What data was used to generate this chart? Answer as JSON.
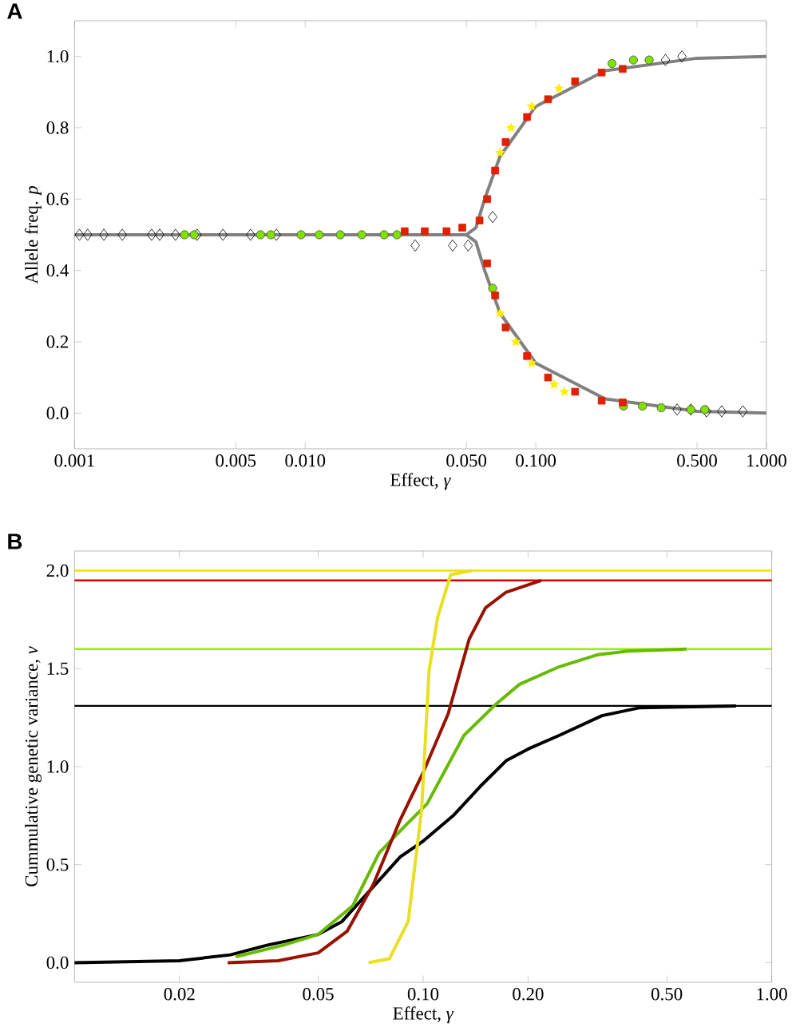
{
  "chart_data": [
    {
      "type": "scatter",
      "title": "A",
      "xlabel": "Effect, *γ*",
      "ylabel": "Allele freq. *p*",
      "log": "x",
      "xlim": [
        0.001,
        1.0
      ],
      "ylim": [
        -0.1,
        1.1
      ],
      "xticks": [
        0.001,
        0.005,
        {
          "value": 0.01,
          "label": "0.010"
        },
        {
          "value": 0.05,
          "label": "0.050"
        },
        {
          "value": 0.1,
          "label": "0.100"
        },
        {
          "value": 0.5,
          "label": "0.500"
        },
        {
          "value": 1.0,
          "label": "1.000"
        }
      ],
      "yticks": [
        {
          "value": 0.0,
          "label": "0.0"
        },
        0.2,
        0.4,
        0.6,
        0.8,
        {
          "value": 1.0,
          "label": "1.0"
        }
      ],
      "series": [
        {
          "type": "line",
          "marker": "none",
          "color": "#808080",
          "x": [
            0.001,
            0.01,
            0.03,
            0.05,
            0.055,
            0.06,
            0.07,
            0.1,
            0.2,
            0.5,
            1.0
          ],
          "values": [
            0.5,
            0.5,
            0.5,
            0.5,
            0.52,
            0.6,
            0.72,
            0.86,
            0.96,
            0.995,
            1.0
          ]
        },
        {
          "type": "line",
          "marker": "none",
          "color": "#808080",
          "x": [
            0.001,
            0.01,
            0.03,
            0.05,
            0.055,
            0.06,
            0.07,
            0.1,
            0.2,
            0.5,
            1.0
          ],
          "values": [
            0.5,
            0.5,
            0.5,
            0.5,
            0.48,
            0.4,
            0.28,
            0.14,
            0.04,
            0.005,
            0.0
          ]
        },
        {
          "marker": "diamond",
          "color": "#000000",
          "x": [
            0.00105,
            0.00114,
            0.00134,
            0.00161,
            0.00216,
            0.00234,
            0.00274,
            0.0034,
            0.0044,
            0.0058,
            0.0075,
            0.03,
            0.0436,
            0.0509,
            0.065,
            0.365,
            0.43,
            0.41,
            0.47,
            0.55,
            0.64,
            0.79
          ],
          "values": [
            0.5,
            0.5,
            0.5,
            0.5,
            0.5,
            0.5,
            0.5,
            0.5,
            0.5,
            0.5,
            0.5,
            0.47,
            0.47,
            0.47,
            0.55,
            0.99,
            1.0,
            0.01,
            0.01,
            0.005,
            0.005,
            0.005
          ]
        },
        {
          "marker": "circle",
          "color": "#80e000",
          "x": [
            0.003,
            0.0033,
            0.0064,
            0.0071,
            0.0096,
            0.0115,
            0.0142,
            0.0176,
            0.022,
            0.025,
            0.065,
            0.214,
            0.265,
            0.31,
            0.24,
            0.29,
            0.35,
            0.47,
            0.54
          ],
          "values": [
            0.5,
            0.5,
            0.5,
            0.5,
            0.5,
            0.5,
            0.5,
            0.5,
            0.5,
            0.5,
            0.35,
            0.98,
            0.99,
            0.99,
            0.02,
            0.02,
            0.015,
            0.01,
            0.01
          ]
        },
        {
          "marker": "square",
          "color": "#e02000",
          "x": [
            0.027,
            0.033,
            0.041,
            0.048,
            0.057,
            0.0615,
            0.0666,
            0.074,
            0.0916,
            0.113,
            0.148,
            0.193,
            0.238,
            0.0615,
            0.0666,
            0.074,
            0.0916,
            0.113,
            0.148,
            0.193,
            0.238
          ],
          "values": [
            0.51,
            0.51,
            0.51,
            0.52,
            0.54,
            0.6,
            0.68,
            0.76,
            0.83,
            0.88,
            0.93,
            0.955,
            0.965,
            0.42,
            0.33,
            0.24,
            0.16,
            0.1,
            0.06,
            0.035,
            0.03
          ]
        },
        {
          "marker": "star",
          "color": "#ffee00",
          "x": [
            0.07,
            0.078,
            0.096,
            0.126,
            0.07,
            0.082,
            0.096,
            0.12,
            0.133
          ],
          "values": [
            0.73,
            0.8,
            0.86,
            0.91,
            0.28,
            0.2,
            0.14,
            0.08,
            0.06
          ]
        }
      ]
    },
    {
      "type": "line",
      "title": "B",
      "xlabel": "Effect, *γ*",
      "ylabel": "Cummulative genetic variance, *v*",
      "log": "x",
      "marker": "none",
      "xlim": [
        0.01,
        1.0
      ],
      "ylim": [
        -0.1,
        2.1
      ],
      "xticks": [
        0.02,
        0.05,
        {
          "value": 0.1,
          "label": "0.10"
        },
        {
          "value": 0.2,
          "label": "0.20"
        },
        {
          "value": 0.5,
          "label": "0.50"
        },
        {
          "value": 1.0,
          "label": "1.00"
        }
      ],
      "yticks": [
        {
          "value": 0.0,
          "label": "0.0"
        },
        0.5,
        {
          "value": 1.0,
          "label": "1.0"
        },
        1.5,
        {
          "value": 2.0,
          "label": "2.0"
        }
      ],
      "ref_lines": [
        {
          "axis": "y",
          "value": 2.0,
          "color": "#f0e000"
        },
        {
          "axis": "y",
          "value": 1.95,
          "color": "#e00000"
        },
        {
          "axis": "y",
          "value": 1.6,
          "color": "#99ee00"
        },
        {
          "axis": "y",
          "value": 1.31,
          "color": "#000000"
        }
      ],
      "series": [
        {
          "color": "#000000",
          "x": [
            0.01,
            0.02,
            0.028,
            0.0358,
            0.05,
            0.0585,
            0.0722,
            0.086,
            0.1,
            0.122,
            0.146,
            0.173,
            0.2,
            0.246,
            0.326,
            0.416,
            0.79
          ],
          "values": [
            0.0,
            0.01,
            0.04,
            0.09,
            0.144,
            0.21,
            0.39,
            0.54,
            0.62,
            0.75,
            0.9,
            1.03,
            1.09,
            1.16,
            1.26,
            1.3,
            1.31
          ]
        },
        {
          "color": "#66bb00",
          "x": [
            0.029,
            0.0398,
            0.05,
            0.0628,
            0.0748,
            0.089,
            0.1026,
            0.131,
            0.162,
            0.189,
            0.246,
            0.315,
            0.388,
            0.57
          ],
          "values": [
            0.03,
            0.09,
            0.144,
            0.29,
            0.56,
            0.7,
            0.81,
            1.16,
            1.32,
            1.42,
            1.51,
            1.57,
            1.59,
            1.6
          ]
        },
        {
          "color": "#991100",
          "x": [
            0.0275,
            0.0384,
            0.05,
            0.0605,
            0.072,
            0.086,
            0.1,
            0.118,
            0.1355,
            0.151,
            0.173,
            0.218
          ],
          "values": [
            0.0,
            0.01,
            0.05,
            0.16,
            0.4,
            0.73,
            0.97,
            1.27,
            1.65,
            1.81,
            1.89,
            1.95
          ]
        },
        {
          "color": "#e8e020",
          "x": [
            0.0697,
            0.08,
            0.0906,
            0.099,
            0.104,
            0.11,
            0.12,
            0.138
          ],
          "values": [
            0.0,
            0.02,
            0.21,
            0.78,
            1.49,
            1.76,
            1.98,
            2.0
          ]
        }
      ]
    }
  ]
}
